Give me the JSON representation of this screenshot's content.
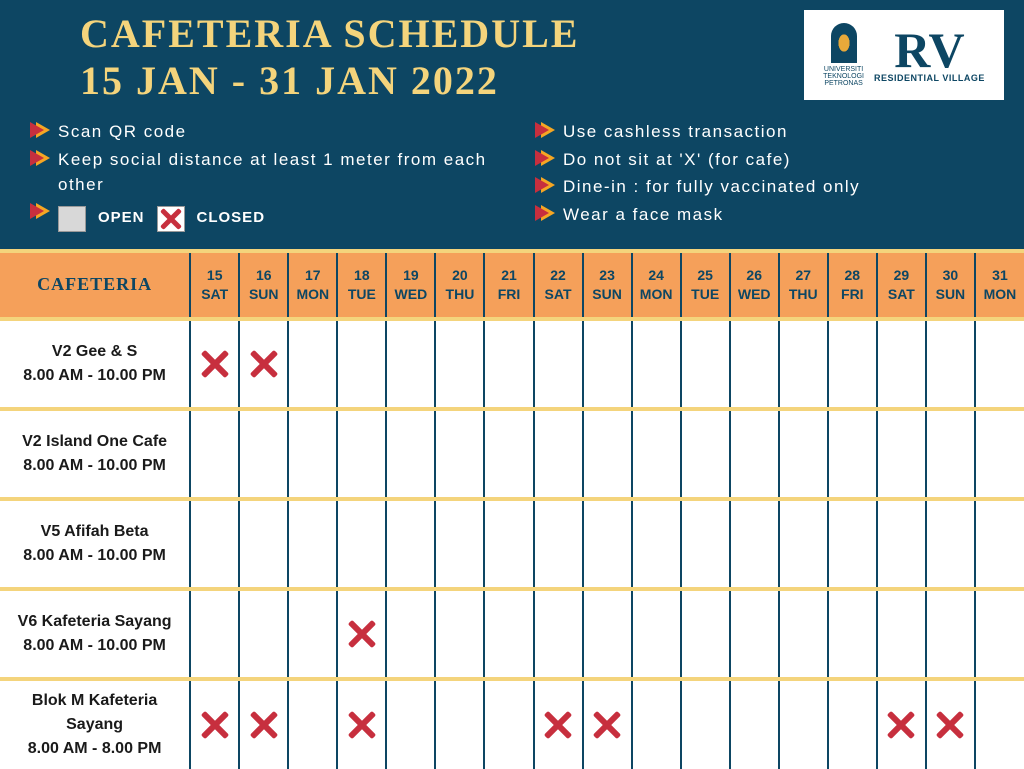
{
  "title": {
    "line1": "CAFETERIA SCHEDULE",
    "line2": "15 JAN - 31 JAN 2022"
  },
  "logo": {
    "uni_line1": "UNIVERSITI",
    "uni_line2": "TEKNOLOGI",
    "uni_line3": "PETRONAS",
    "rv": "RV",
    "rv_sub": "RESIDENTIAL VILLAGE"
  },
  "rules_left": [
    "Scan QR code",
    "Keep social distance at least 1 meter from each other"
  ],
  "rules_right": [
    "Use cashless transaction",
    "Do not sit at 'X' (for cafe)",
    "Dine-in : for fully vaccinated only",
    "Wear a face mask"
  ],
  "legend": {
    "open": "OPEN",
    "closed": "CLOSED"
  },
  "table_header": "CAFETERIA",
  "days": [
    {
      "num": "15",
      "dow": "SAT"
    },
    {
      "num": "16",
      "dow": "SUN"
    },
    {
      "num": "17",
      "dow": "MON"
    },
    {
      "num": "18",
      "dow": "TUE"
    },
    {
      "num": "19",
      "dow": "WED"
    },
    {
      "num": "20",
      "dow": "THU"
    },
    {
      "num": "21",
      "dow": "FRI"
    },
    {
      "num": "22",
      "dow": "SAT"
    },
    {
      "num": "23",
      "dow": "SUN"
    },
    {
      "num": "24",
      "dow": "MON"
    },
    {
      "num": "25",
      "dow": "TUE"
    },
    {
      "num": "26",
      "dow": "WED"
    },
    {
      "num": "27",
      "dow": "THU"
    },
    {
      "num": "28",
      "dow": "FRI"
    },
    {
      "num": "29",
      "dow": "SAT"
    },
    {
      "num": "30",
      "dow": "SUN"
    },
    {
      "num": "31",
      "dow": "MON"
    }
  ],
  "rows": [
    {
      "name": "V2 Gee & S",
      "hours": "8.00 AM - 10.00 PM",
      "closed": [
        true,
        true,
        false,
        false,
        false,
        false,
        false,
        false,
        false,
        false,
        false,
        false,
        false,
        false,
        false,
        false,
        false
      ]
    },
    {
      "name": "V2 Island One Cafe",
      "hours": "8.00 AM - 10.00 PM",
      "closed": [
        false,
        false,
        false,
        false,
        false,
        false,
        false,
        false,
        false,
        false,
        false,
        false,
        false,
        false,
        false,
        false,
        false
      ]
    },
    {
      "name": "V5 Afifah Beta",
      "hours": "8.00 AM - 10.00 PM",
      "closed": [
        false,
        false,
        false,
        false,
        false,
        false,
        false,
        false,
        false,
        false,
        false,
        false,
        false,
        false,
        false,
        false,
        false
      ]
    },
    {
      "name": "V6 Kafeteria Sayang",
      "hours": "8.00 AM - 10.00 PM",
      "closed": [
        false,
        false,
        false,
        true,
        false,
        false,
        false,
        false,
        false,
        false,
        false,
        false,
        false,
        false,
        false,
        false,
        false
      ]
    },
    {
      "name": "Blok M Kafeteria Sayang",
      "hours": "8.00 AM - 8.00 PM",
      "closed": [
        true,
        true,
        false,
        true,
        false,
        false,
        false,
        true,
        true,
        false,
        false,
        false,
        false,
        false,
        true,
        true,
        false
      ]
    }
  ],
  "colors": {
    "bg": "#0d4663",
    "title": "#f4d47c",
    "header_bg": "#f5a05a",
    "row_divider": "#f4d47c",
    "x_color": "#c72f3e"
  }
}
